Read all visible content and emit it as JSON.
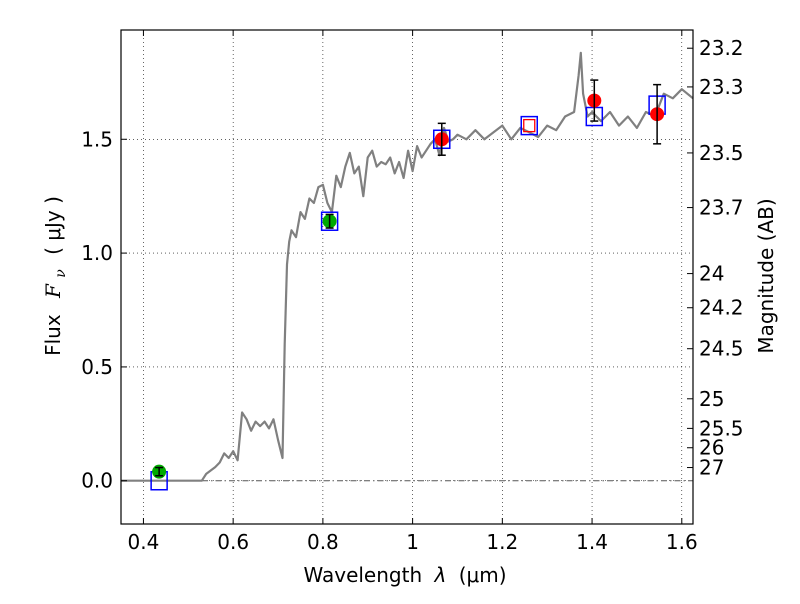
{
  "chart_data": {
    "type": "scatter",
    "xlabel": "Wavelength",
    "xlabel_symbol": "λ",
    "xlabel_unit": "(μm)",
    "ylabel": "Flux",
    "ylabel_symbol": "F",
    "ylabel_subscript": "ν",
    "ylabel_unit": "( μJy )",
    "y2label": "Magnitude (AB)",
    "xlim": [
      0.35,
      1.625
    ],
    "ylim": [
      -0.19,
      1.98
    ],
    "grid": true,
    "grid_style": "dotted",
    "x_ticks": [
      {
        "value": 0.4,
        "label": "0.4"
      },
      {
        "value": 0.6,
        "label": "0.6"
      },
      {
        "value": 0.8,
        "label": "0.8"
      },
      {
        "value": 1.0,
        "label": "1"
      },
      {
        "value": 1.2,
        "label": "1.2"
      },
      {
        "value": 1.4,
        "label": "1.4"
      },
      {
        "value": 1.6,
        "label": "1.6"
      }
    ],
    "y_ticks": [
      {
        "value": 0.0,
        "label": "0.0"
      },
      {
        "value": 0.5,
        "label": "0.5"
      },
      {
        "value": 1.0,
        "label": "1.0"
      },
      {
        "value": 1.5,
        "label": "1.5"
      }
    ],
    "magnitude_ticks": [
      {
        "flux": 1.9,
        "label": "23.2"
      },
      {
        "flux": 1.73,
        "label": "23.3"
      },
      {
        "flux": 1.44,
        "label": "23.5"
      },
      {
        "flux": 1.2,
        "label": "23.7"
      },
      {
        "flux": 0.91,
        "label": "24"
      },
      {
        "flux": 0.76,
        "label": "24.2"
      },
      {
        "flux": 0.58,
        "label": "24.5"
      },
      {
        "flux": 0.36,
        "label": "25"
      },
      {
        "flux": 0.23,
        "label": "25.5"
      },
      {
        "flux": 0.145,
        "label": "26"
      },
      {
        "flux": 0.058,
        "label": "27"
      }
    ],
    "zero_line": {
      "y": 0.0,
      "style": "dash-dot",
      "color": "#555555"
    },
    "template_spectrum": {
      "color": "#808080",
      "x": [
        0.35,
        0.53,
        0.54,
        0.56,
        0.57,
        0.58,
        0.59,
        0.6,
        0.61,
        0.62,
        0.63,
        0.64,
        0.65,
        0.66,
        0.67,
        0.68,
        0.69,
        0.7,
        0.71,
        0.715,
        0.72,
        0.725,
        0.73,
        0.74,
        0.75,
        0.76,
        0.77,
        0.78,
        0.79,
        0.8,
        0.81,
        0.82,
        0.83,
        0.84,
        0.85,
        0.86,
        0.87,
        0.88,
        0.89,
        0.9,
        0.91,
        0.92,
        0.93,
        0.94,
        0.95,
        0.96,
        0.97,
        0.98,
        0.99,
        1.0,
        1.01,
        1.02,
        1.03,
        1.04,
        1.05,
        1.06,
        1.07,
        1.08,
        1.09,
        1.1,
        1.12,
        1.14,
        1.16,
        1.18,
        1.2,
        1.22,
        1.24,
        1.26,
        1.28,
        1.3,
        1.32,
        1.34,
        1.36,
        1.37,
        1.375,
        1.38,
        1.39,
        1.4,
        1.42,
        1.44,
        1.46,
        1.48,
        1.5,
        1.52,
        1.54,
        1.56,
        1.58,
        1.6,
        1.625
      ],
      "y": [
        0.0,
        0.0,
        0.03,
        0.06,
        0.08,
        0.12,
        0.1,
        0.13,
        0.09,
        0.3,
        0.27,
        0.22,
        0.26,
        0.24,
        0.26,
        0.23,
        0.27,
        0.18,
        0.1,
        0.6,
        0.95,
        1.05,
        1.1,
        1.07,
        1.18,
        1.15,
        1.24,
        1.22,
        1.29,
        1.3,
        1.22,
        1.18,
        1.34,
        1.29,
        1.38,
        1.44,
        1.35,
        1.38,
        1.25,
        1.42,
        1.45,
        1.38,
        1.4,
        1.39,
        1.42,
        1.35,
        1.4,
        1.33,
        1.45,
        1.36,
        1.47,
        1.42,
        1.45,
        1.48,
        1.5,
        1.43,
        1.55,
        1.49,
        1.5,
        1.52,
        1.5,
        1.54,
        1.5,
        1.53,
        1.56,
        1.5,
        1.55,
        1.53,
        1.51,
        1.56,
        1.54,
        1.6,
        1.62,
        1.78,
        1.88,
        1.7,
        1.6,
        1.62,
        1.58,
        1.62,
        1.56,
        1.6,
        1.55,
        1.62,
        1.6,
        1.7,
        1.68,
        1.72,
        1.68
      ]
    },
    "series": [
      {
        "marker": "open-square",
        "color": "#0000ff",
        "points": [
          {
            "x": 0.435,
            "y": 0.0
          },
          {
            "x": 0.815,
            "y": 1.14
          },
          {
            "x": 1.065,
            "y": 1.5
          },
          {
            "x": 1.26,
            "y": 1.56
          },
          {
            "x": 1.405,
            "y": 1.6
          },
          {
            "x": 1.545,
            "y": 1.65
          }
        ]
      },
      {
        "marker": "open-square-inner",
        "color": "#ff0000",
        "points": [
          {
            "x": 1.26,
            "y": 1.56
          }
        ]
      },
      {
        "marker": "filled-circle",
        "color": "#00aa00",
        "points": [
          {
            "x": 0.435,
            "y": 0.04,
            "err": 0.018
          },
          {
            "x": 0.815,
            "y": 1.14,
            "err": 0.03
          }
        ]
      },
      {
        "marker": "filled-circle",
        "color": "#ff0000",
        "points": [
          {
            "x": 1.065,
            "y": 1.5,
            "err": 0.07
          },
          {
            "x": 1.405,
            "y": 1.67,
            "err": 0.09
          },
          {
            "x": 1.545,
            "y": 1.61,
            "err": 0.13
          }
        ]
      }
    ]
  }
}
